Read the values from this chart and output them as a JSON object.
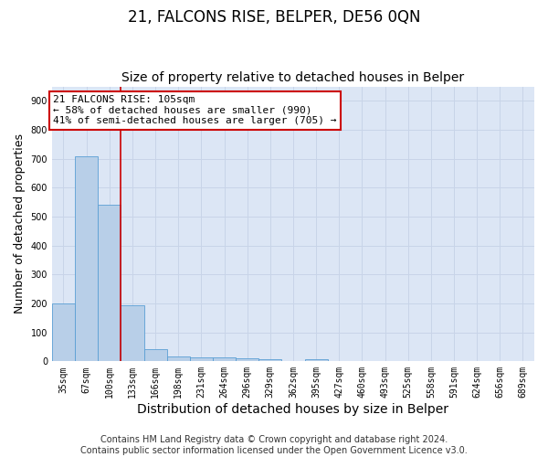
{
  "title": "21, FALCONS RISE, BELPER, DE56 0QN",
  "subtitle": "Size of property relative to detached houses in Belper",
  "xlabel": "Distribution of detached houses by size in Belper",
  "ylabel": "Number of detached properties",
  "categories": [
    "35sqm",
    "67sqm",
    "100sqm",
    "133sqm",
    "166sqm",
    "198sqm",
    "231sqm",
    "264sqm",
    "296sqm",
    "329sqm",
    "362sqm",
    "395sqm",
    "427sqm",
    "460sqm",
    "493sqm",
    "525sqm",
    "558sqm",
    "591sqm",
    "624sqm",
    "656sqm",
    "689sqm"
  ],
  "values": [
    200,
    710,
    540,
    195,
    42,
    18,
    14,
    13,
    10,
    8,
    0,
    8,
    0,
    0,
    0,
    0,
    0,
    0,
    0,
    0,
    0
  ],
  "bar_color": "#b8cfe8",
  "bar_edge_color": "#5a9fd4",
  "highlight_bar_index": 2,
  "vline_color": "#cc0000",
  "annotation_text": "21 FALCONS RISE: 105sqm\n← 58% of detached houses are smaller (990)\n41% of semi-detached houses are larger (705) →",
  "annotation_box_color": "#ffffff",
  "annotation_box_edge_color": "#cc0000",
  "ylim": [
    0,
    950
  ],
  "yticks": [
    0,
    100,
    200,
    300,
    400,
    500,
    600,
    700,
    800,
    900
  ],
  "grid_color": "#c8d4e8",
  "background_color": "#dce6f5",
  "footer": "Contains HM Land Registry data © Crown copyright and database right 2024.\nContains public sector information licensed under the Open Government Licence v3.0.",
  "title_fontsize": 12,
  "subtitle_fontsize": 10,
  "axis_label_fontsize": 9,
  "tick_fontsize": 7,
  "annotation_fontsize": 8,
  "footer_fontsize": 7
}
